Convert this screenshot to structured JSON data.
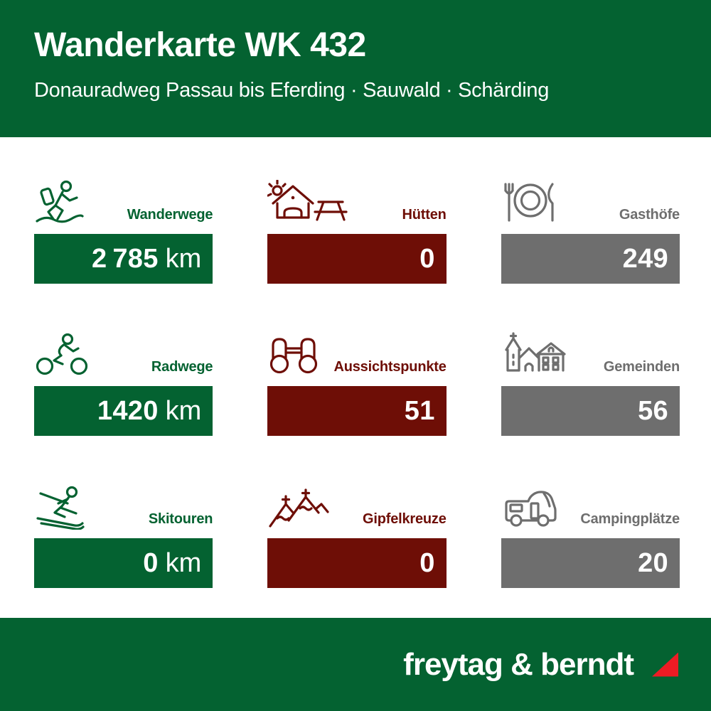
{
  "header": {
    "title": "Wanderkarte WK 432",
    "subtitle": "Donauradweg Passau bis Eferding · Sauwald · Schärding"
  },
  "tiles": [
    {
      "label": "Wanderwege",
      "value": "2 785",
      "unit": "km",
      "color": "#046231",
      "icon": "hiker-icon"
    },
    {
      "label": "Hütten",
      "value": "0",
      "unit": "",
      "color": "#6E0E06",
      "icon": "hut-icon"
    },
    {
      "label": "Gasthöfe",
      "value": "249",
      "unit": "",
      "color": "#6E6E6E",
      "icon": "restaurant-icon"
    },
    {
      "label": "Radwege",
      "value": "1420",
      "unit": "km",
      "color": "#046231",
      "icon": "cyclist-icon"
    },
    {
      "label": "Aussichtspunkte",
      "value": "51",
      "unit": "",
      "color": "#6E0E06",
      "icon": "binoculars-icon"
    },
    {
      "label": "Gemeinden",
      "value": "56",
      "unit": "",
      "color": "#6E6E6E",
      "icon": "village-church-icon"
    },
    {
      "label": "Skitouren",
      "value": "0",
      "unit": "km",
      "color": "#046231",
      "icon": "skier-icon"
    },
    {
      "label": "Gipfelkreuze",
      "value": "0",
      "unit": "",
      "color": "#6E0E06",
      "icon": "summit-cross-icon"
    },
    {
      "label": "Campingplätze",
      "value": "20",
      "unit": "",
      "color": "#6E6E6E",
      "icon": "camper-van-icon"
    }
  ],
  "footer": {
    "brand": "freytag & berndt",
    "triangle_color": "#ED1B24"
  },
  "colors": {
    "green": "#046231",
    "maroon": "#6E0E06",
    "gray": "#6E6E6E",
    "red": "#ED1B24",
    "background": "#FFFFFF",
    "text_on_color": "#FFFFFF"
  },
  "chart_data": {
    "type": "table",
    "title": "Wanderkarte WK 432",
    "subtitle": "Donauradweg Passau bis Eferding · Sauwald · Schärding",
    "categories": [
      "Wanderwege",
      "Hütten",
      "Gasthöfe",
      "Radwege",
      "Aussichtspunkte",
      "Gemeinden",
      "Skitouren",
      "Gipfelkreuze",
      "Campingplätze"
    ],
    "values": [
      2785,
      0,
      249,
      1420,
      51,
      56,
      0,
      0,
      20
    ],
    "units": [
      "km",
      "",
      "",
      "km",
      "",
      "",
      "km",
      "",
      ""
    ],
    "legend_position": "none",
    "grid": false
  }
}
